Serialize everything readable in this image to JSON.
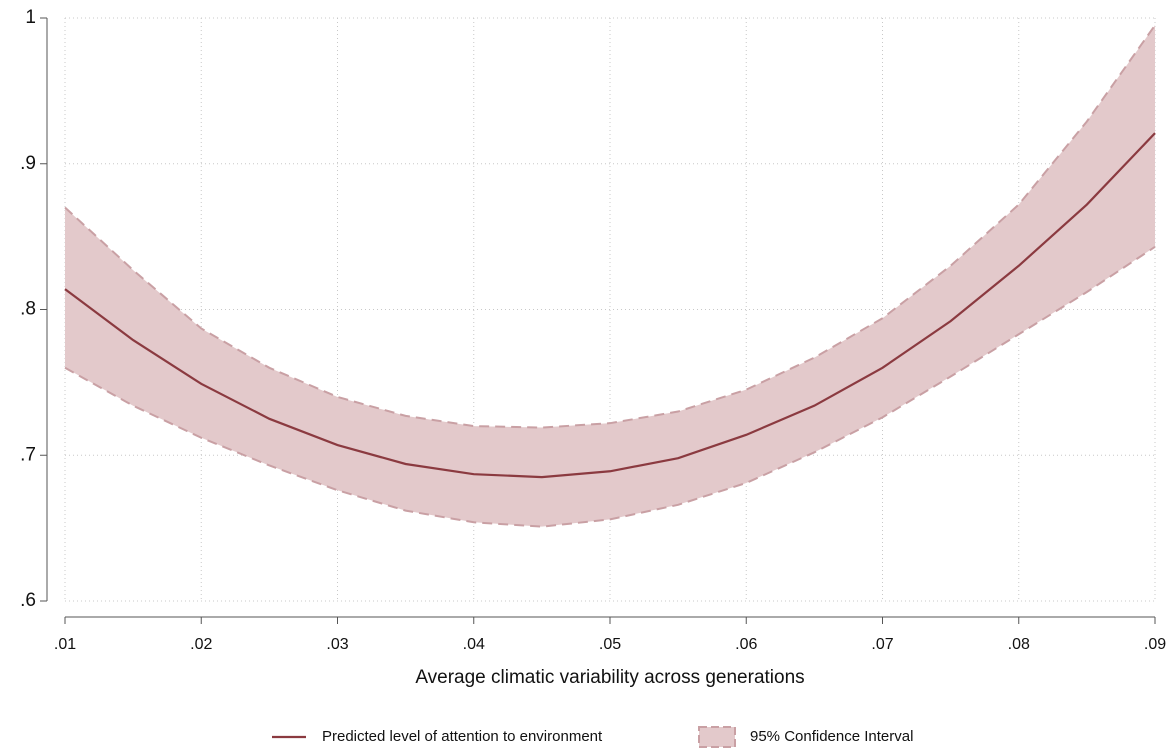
{
  "chart_data": {
    "type": "line",
    "x": [
      0.01,
      0.015,
      0.02,
      0.025,
      0.03,
      0.035,
      0.04,
      0.045,
      0.05,
      0.055,
      0.06,
      0.065,
      0.07,
      0.075,
      0.08,
      0.085,
      0.09
    ],
    "series": [
      {
        "name": "Predicted level of attention to environment",
        "color": "#8b3a40",
        "values": [
          0.814,
          0.779,
          0.749,
          0.725,
          0.707,
          0.694,
          0.687,
          0.685,
          0.689,
          0.698,
          0.714,
          0.734,
          0.76,
          0.792,
          0.83,
          0.872,
          0.921
        ]
      },
      {
        "name": "95% Confidence Interval",
        "color": "#e3c9cb",
        "upper": [
          0.87,
          0.827,
          0.787,
          0.76,
          0.74,
          0.727,
          0.72,
          0.719,
          0.722,
          0.73,
          0.745,
          0.767,
          0.794,
          0.83,
          0.872,
          0.929,
          0.995
        ],
        "lower": [
          0.76,
          0.734,
          0.712,
          0.693,
          0.676,
          0.662,
          0.654,
          0.651,
          0.656,
          0.666,
          0.681,
          0.702,
          0.726,
          0.754,
          0.783,
          0.812,
          0.843
        ]
      }
    ],
    "x_label": "Average climatic variability across generations",
    "xlim": [
      0.01,
      0.09
    ],
    "xticks": [
      {
        "value": 0.01,
        "label": ".01"
      },
      {
        "value": 0.02,
        "label": ".02"
      },
      {
        "value": 0.03,
        "label": ".03"
      },
      {
        "value": 0.04,
        "label": ".04"
      },
      {
        "value": 0.05,
        "label": ".05"
      },
      {
        "value": 0.06,
        "label": ".06"
      },
      {
        "value": 0.07,
        "label": ".07"
      },
      {
        "value": 0.08,
        "label": ".08"
      },
      {
        "value": 0.09,
        "label": ".09"
      }
    ],
    "ylim": [
      0.6,
      1
    ],
    "yticks": [
      {
        "value": 0.6,
        "label": ".6"
      },
      {
        "value": 0.7,
        "label": ".7"
      },
      {
        "value": 0.8,
        "label": ".8"
      },
      {
        "value": 0.9,
        "label": ".9"
      },
      1
    ],
    "grid": true
  }
}
